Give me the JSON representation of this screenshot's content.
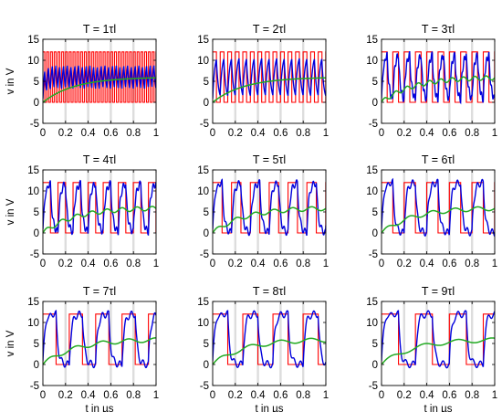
{
  "figure": {
    "ylabel": "v in V",
    "xlabel": "t in µs"
  },
  "axes": {
    "x_ticks": [
      0,
      0.2,
      0.4,
      0.6,
      0.8,
      1
    ],
    "x_tick_labels": [
      "0",
      "0.2",
      "0.4",
      "0.6",
      "0.8",
      "1"
    ],
    "y_ticks": [
      -5,
      0,
      5,
      10,
      15
    ],
    "y_tick_labels": [
      "-5",
      "0",
      "5",
      "10",
      "15"
    ],
    "xlim": [
      0,
      1
    ],
    "ylim": [
      -5,
      15
    ]
  },
  "colors": {
    "square_wave": "#ff0000",
    "response": "#0000dd",
    "average": "#22aa22",
    "grid_band": "#dddddd"
  },
  "chart_data": [
    {
      "type": "line",
      "title": "T = 1τl",
      "period_factor": 1,
      "xlim": [
        0,
        1
      ],
      "ylim": [
        -5,
        15
      ],
      "series": [
        {
          "values": [
            0,
            12
          ]
        },
        {
          "values": [
            0,
            12
          ]
        },
        {
          "values": [
            0,
            6
          ]
        }
      ]
    },
    {
      "type": "line",
      "title": "T = 2τl",
      "period_factor": 2,
      "xlim": [
        0,
        1
      ],
      "ylim": [
        -5,
        15
      ],
      "series": [
        {
          "values": [
            0,
            12
          ]
        },
        {
          "values": [
            0,
            12
          ]
        },
        {
          "values": [
            0,
            6
          ]
        }
      ]
    },
    {
      "type": "line",
      "title": "T = 3τl",
      "period_factor": 3,
      "xlim": [
        0,
        1
      ],
      "ylim": [
        -5,
        15
      ],
      "series": [
        {
          "values": [
            0,
            12
          ]
        },
        {
          "values": [
            0,
            12
          ]
        },
        {
          "values": [
            0,
            6
          ]
        }
      ]
    },
    {
      "type": "line",
      "title": "T = 4τl",
      "period_factor": 4,
      "xlim": [
        0,
        1
      ],
      "ylim": [
        -5,
        15
      ],
      "series": [
        {
          "values": [
            0,
            12
          ]
        },
        {
          "values": [
            0,
            12
          ]
        },
        {
          "values": [
            0,
            6
          ]
        }
      ]
    },
    {
      "type": "line",
      "title": "T = 5τl",
      "period_factor": 5,
      "xlim": [
        0,
        1
      ],
      "ylim": [
        -5,
        15
      ],
      "series": [
        {
          "values": [
            0,
            12
          ]
        },
        {
          "values": [
            0,
            12
          ]
        },
        {
          "values": [
            0,
            6
          ]
        }
      ]
    },
    {
      "type": "line",
      "title": "T = 6τl",
      "period_factor": 6,
      "xlim": [
        0,
        1
      ],
      "ylim": [
        -5,
        15
      ],
      "series": [
        {
          "values": [
            0,
            12
          ]
        },
        {
          "values": [
            0,
            12
          ]
        },
        {
          "values": [
            0,
            6
          ]
        }
      ]
    },
    {
      "type": "line",
      "title": "T = 7τl",
      "period_factor": 7,
      "xlim": [
        0,
        1
      ],
      "ylim": [
        -5,
        15
      ],
      "series": [
        {
          "values": [
            0,
            12
          ]
        },
        {
          "values": [
            0,
            12
          ]
        },
        {
          "values": [
            0,
            6
          ]
        }
      ]
    },
    {
      "type": "line",
      "title": "T = 8τl",
      "period_factor": 8,
      "xlim": [
        0,
        1
      ],
      "ylim": [
        -5,
        15
      ],
      "series": [
        {
          "values": [
            0,
            12
          ]
        },
        {
          "values": [
            0,
            12
          ]
        },
        {
          "values": [
            0,
            6
          ]
        }
      ]
    },
    {
      "type": "line",
      "title": "T = 9τl",
      "period_factor": 9,
      "xlim": [
        0,
        1
      ],
      "ylim": [
        -5,
        15
      ],
      "series": [
        {
          "values": [
            0,
            12
          ]
        },
        {
          "values": [
            0,
            12
          ]
        },
        {
          "values": [
            0,
            6
          ]
        }
      ]
    }
  ]
}
